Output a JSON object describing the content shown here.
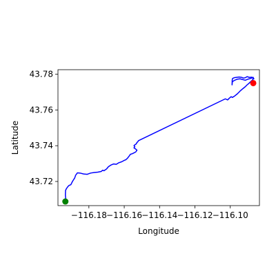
{
  "chart_data": {
    "type": "line",
    "title": "",
    "xlabel": "Longitude",
    "ylabel": "Latitude",
    "xlim": [
      -116.1975,
      -116.0835
    ],
    "ylim": [
      43.7065,
      43.7825
    ],
    "grid": false,
    "x_ticks": [
      -116.18,
      -116.16,
      -116.14,
      -116.12,
      -116.1
    ],
    "x_tick_labels": [
      "−116.18",
      "−116.16",
      "−116.14",
      "−116.12",
      "−116.10"
    ],
    "y_ticks": [
      43.72,
      43.74,
      43.76,
      43.78
    ],
    "y_tick_labels": [
      "43.72",
      "43.74",
      "43.76",
      "43.78"
    ],
    "series": [
      {
        "line_color": "#0000ff",
        "x": [
          -116.1931,
          -116.1931,
          -116.1933,
          -116.1932,
          -116.1927,
          -116.192,
          -116.1912,
          -116.1902,
          -116.1893,
          -116.188,
          -116.1875,
          -116.1865,
          -116.185,
          -116.183,
          -116.181,
          -116.179,
          -116.177,
          -116.175,
          -116.173,
          -116.1722,
          -116.1715,
          -116.17,
          -116.169,
          -116.1675,
          -116.166,
          -116.1645,
          -116.163,
          -116.1615,
          -116.16,
          -116.159,
          -116.158,
          -116.157,
          -116.1565,
          -116.1555,
          -116.1545,
          -116.1535,
          -116.1528,
          -116.1536,
          -116.1545,
          -116.154,
          -116.1545,
          -116.154,
          -116.1532,
          -116.1528,
          -116.1523,
          -116.152,
          -116.1028,
          -116.1015,
          -116.1005,
          -116.0995,
          -116.0988,
          -116.0975,
          -116.096,
          -116.0945,
          -116.093,
          -116.0915,
          -116.0905,
          -116.0895,
          -116.0885,
          -116.0872,
          -116.087,
          -116.0885,
          -116.09,
          -116.0915,
          -116.093,
          -116.0945,
          -116.096,
          -116.0975,
          -116.0988,
          -116.099,
          -116.0989,
          -116.0987,
          -116.0978,
          -116.0965,
          -116.095,
          -116.0935,
          -116.0925,
          -116.0915,
          -116.0905,
          -116.0892,
          -116.0878,
          -116.087,
          -116.0865
        ],
        "y": [
          43.7085,
          43.71,
          43.7125,
          43.715,
          43.716,
          43.717,
          43.7178,
          43.7182,
          43.72,
          43.722,
          43.7235,
          43.7248,
          43.7247,
          43.7242,
          43.724,
          43.7247,
          43.725,
          43.7252,
          43.7256,
          43.7263,
          43.726,
          43.727,
          43.7282,
          43.7292,
          43.7298,
          43.7296,
          43.7305,
          43.731,
          43.7318,
          43.7322,
          43.7332,
          43.7345,
          43.7352,
          43.7355,
          43.736,
          43.7365,
          43.7375,
          43.7382,
          43.7388,
          43.7395,
          43.74,
          43.7405,
          43.741,
          43.7418,
          43.7422,
          43.7428,
          43.7662,
          43.7656,
          43.7666,
          43.7674,
          43.767,
          43.7678,
          43.769,
          43.7705,
          43.7718,
          43.773,
          43.774,
          43.7748,
          43.7758,
          43.777,
          43.7782,
          43.7776,
          43.7772,
          43.7766,
          43.777,
          43.7774,
          43.7772,
          43.7766,
          43.7758,
          43.774,
          43.7768,
          43.7776,
          43.778,
          43.7782,
          43.7784,
          43.7782,
          43.7778,
          43.778,
          43.7786,
          43.7782,
          43.7783,
          43.778,
          43.7772
        ]
      }
    ],
    "markers": [
      {
        "label": "start",
        "x": -116.1933,
        "y": 43.7088,
        "color": "#008000"
      },
      {
        "label": "end",
        "x": -116.087,
        "y": 43.775,
        "color": "#ff0000"
      }
    ]
  }
}
